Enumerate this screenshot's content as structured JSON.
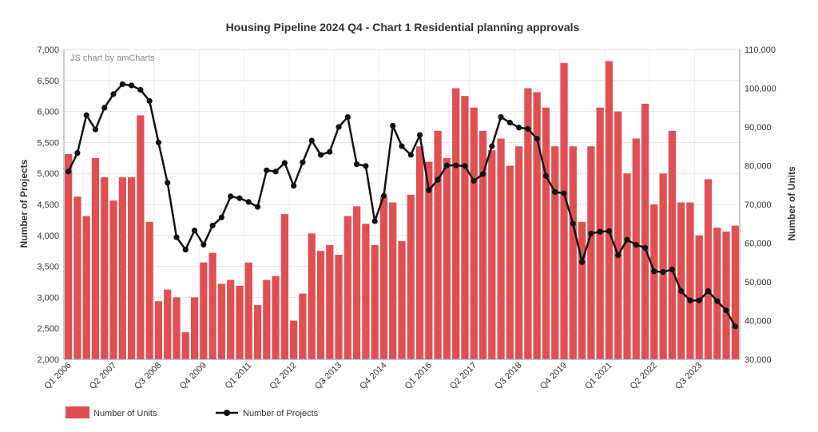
{
  "chart_data": {
    "type": "bar+line",
    "title": "Housing Pipeline 2024 Q4 - Chart 1 Residential planning approvals",
    "watermark": "JS chart by amCharts",
    "ylabel_left": "Number of Projects",
    "ylabel_right": "Number of Units",
    "ylim_left": [
      2000,
      7000
    ],
    "ylim_right": [
      30000,
      110000
    ],
    "yticks_left": [
      "2,000",
      "2,500",
      "3,000",
      "3,500",
      "4,000",
      "4,500",
      "5,000",
      "5,500",
      "6,000",
      "6,500",
      "7,000"
    ],
    "yticks_right": [
      "30,000",
      "40,000",
      "50,000",
      "60,000",
      "70,000",
      "80,000",
      "90,000",
      "100,000",
      "110,000"
    ],
    "xtick_labels": [
      {
        "index": 0,
        "label": "Q1 2006"
      },
      {
        "index": 5,
        "label": "Q2 2007"
      },
      {
        "index": 10,
        "label": "Q3 2008"
      },
      {
        "index": 15,
        "label": "Q4 2009"
      },
      {
        "index": 20,
        "label": "Q1 2011"
      },
      {
        "index": 25,
        "label": "Q2 2012"
      },
      {
        "index": 30,
        "label": "Q3 2013"
      },
      {
        "index": 35,
        "label": "Q4 2014"
      },
      {
        "index": 40,
        "label": "Q1 2016"
      },
      {
        "index": 45,
        "label": "Q2 2017"
      },
      {
        "index": 50,
        "label": "Q3 2018"
      },
      {
        "index": 55,
        "label": "Q4 2019"
      },
      {
        "index": 60,
        "label": "Q1 2021"
      },
      {
        "index": 65,
        "label": "Q2 2022"
      },
      {
        "index": 70,
        "label": "Q3 2023"
      }
    ],
    "series": [
      {
        "name": "Number of Units",
        "type": "bar",
        "axis": "right",
        "color": "#e05052",
        "values": [
          83000,
          72000,
          67000,
          82000,
          77000,
          71000,
          77000,
          77000,
          93000,
          65500,
          45000,
          48000,
          46000,
          37000,
          46000,
          55000,
          57500,
          49500,
          50500,
          49000,
          55000,
          44000,
          50500,
          51500,
          67500,
          40000,
          47000,
          62500,
          58000,
          59500,
          57000,
          67000,
          69500,
          65000,
          59500,
          72000,
          70500,
          60500,
          72500,
          85000,
          81000,
          89000,
          82000,
          100000,
          98000,
          95000,
          89000,
          84000,
          87000,
          80000,
          85000,
          100000,
          99000,
          95000,
          85000,
          106500,
          85000,
          65500,
          85000,
          95000,
          107000,
          94000,
          78000,
          87000,
          96000,
          70000,
          78000,
          89000,
          70500,
          70500,
          62000,
          76500,
          64000,
          63000,
          64500
        ],
        "legend_label": "Number of Units"
      },
      {
        "name": "Number of Projects",
        "type": "line",
        "axis": "left",
        "color": "#111111",
        "values": [
          5030,
          5330,
          5940,
          5710,
          6060,
          6280,
          6440,
          6420,
          6350,
          6170,
          5500,
          4850,
          3970,
          3770,
          4080,
          3850,
          4160,
          4290,
          4630,
          4600,
          4540,
          4460,
          5050,
          5030,
          5170,
          4800,
          5180,
          5530,
          5300,
          5350,
          5750,
          5910,
          5150,
          5120,
          4230,
          4640,
          5770,
          5440,
          5300,
          5620,
          4730,
          4900,
          5130,
          5130,
          5120,
          4880,
          4990,
          5440,
          5910,
          5820,
          5740,
          5720,
          5560,
          4960,
          4700,
          4680,
          4190,
          3570,
          4030,
          4060,
          4070,
          3680,
          3930,
          3850,
          3800,
          3420,
          3410,
          3450,
          3100,
          2950,
          2950,
          3100,
          2940,
          2790,
          2530
        ],
        "legend_label": "Number of Projects"
      }
    ]
  }
}
